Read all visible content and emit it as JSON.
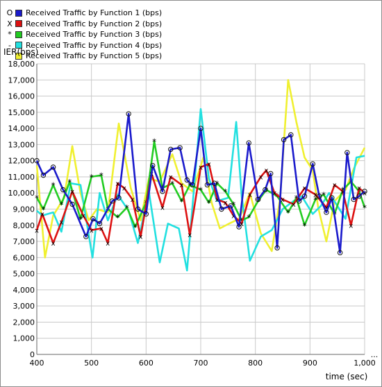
{
  "chart_data": {
    "type": "line",
    "ylabel": "IER(bps)",
    "xlabel": "time (sec)",
    "xlim": [
      400,
      1000
    ],
    "ylim": [
      0,
      18000
    ],
    "grid": true,
    "legend_position": "top-left",
    "x_ticks": [
      "400",
      "500",
      "600",
      "700",
      "800",
      "900",
      "1,000"
    ],
    "y_ticks": [
      "0",
      "1,000",
      "2,000",
      "3,000",
      "4,000",
      "5,000",
      "6,000",
      "7,000",
      "8,000",
      "9,000",
      "10,000",
      "11,000",
      "12,000",
      "13,000",
      "14,000",
      "15,000",
      "16,000",
      "17,000",
      "18,000"
    ],
    "x_overflow_marker": "...",
    "series": [
      {
        "name": "Received Traffic by Function 1 (bps)",
        "marker": "O",
        "color": "#1a1acc",
        "x": [
          400,
          412,
          430,
          448,
          465,
          490,
          503,
          515,
          538,
          550,
          568,
          585,
          600,
          612,
          630,
          645,
          662,
          675,
          685,
          700,
          712,
          725,
          738,
          755,
          770,
          788,
          805,
          818,
          828,
          840,
          852,
          865,
          880,
          890,
          905,
          917,
          930,
          940,
          955,
          968,
          980,
          990,
          1000
        ],
        "y": [
          12000,
          11100,
          11600,
          10200,
          9300,
          7300,
          8400,
          8100,
          9500,
          9700,
          14900,
          9000,
          8700,
          11700,
          10100,
          12700,
          12800,
          10800,
          10500,
          14000,
          10500,
          10600,
          9000,
          9200,
          7900,
          13100,
          9600,
          10200,
          11200,
          6600,
          13300,
          13600,
          9500,
          9800,
          11800,
          9800,
          8800,
          9700,
          6300,
          12500,
          9600,
          9800,
          10100
        ]
      },
      {
        "name": "Received Traffic by Function 2 (bps)",
        "marker": "X",
        "color": "#dd1111",
        "x": [
          400,
          410,
          430,
          445,
          465,
          485,
          500,
          518,
          530,
          548,
          560,
          575,
          590,
          610,
          630,
          645,
          665,
          680,
          700,
          715,
          730,
          745,
          760,
          775,
          790,
          810,
          820,
          835,
          850,
          870,
          890,
          910,
          930,
          945,
          960,
          975,
          990,
          1000
        ],
        "y": [
          7700,
          8700,
          6900,
          8200,
          10100,
          8600,
          7700,
          7800,
          6900,
          10600,
          10300,
          9600,
          7300,
          11200,
          9100,
          11000,
          10500,
          7400,
          11600,
          11800,
          9600,
          9400,
          8600,
          8100,
          9900,
          11000,
          11400,
          10000,
          9600,
          9300,
          10300,
          9900,
          9100,
          10500,
          10100,
          8000,
          10300,
          10000
        ]
      },
      {
        "name": "Received Traffic by Function 3 (bps)",
        "marker": "*",
        "color": "#22cc22",
        "x": [
          400,
          412,
          430,
          445,
          460,
          480,
          500,
          518,
          530,
          548,
          565,
          580,
          600,
          615,
          630,
          648,
          665,
          680,
          700,
          715,
          730,
          745,
          760,
          775,
          788,
          805,
          820,
          840,
          860,
          875,
          890,
          910,
          925,
          945,
          960,
          975,
          990,
          1000
        ],
        "y": [
          9700,
          9000,
          10500,
          9300,
          10700,
          8400,
          11000,
          11100,
          9000,
          8500,
          9100,
          7900,
          9400,
          13200,
          10300,
          10600,
          9500,
          10500,
          10200,
          9400,
          10600,
          10100,
          9300,
          8300,
          8500,
          9500,
          10200,
          9800,
          8800,
          9700,
          8000,
          9600,
          9900,
          8700,
          10200,
          10700,
          10100,
          9100
        ]
      },
      {
        "name": "Received Traffic by Function 4 (bps)",
        "marker": "-",
        "color": "#22e0e0",
        "x": [
          400,
          410,
          430,
          445,
          462,
          480,
          502,
          515,
          530,
          548,
          568,
          585,
          605,
          625,
          640,
          660,
          675,
          700,
          715,
          730,
          750,
          765,
          775,
          790,
          810,
          830,
          850,
          870,
          885,
          905,
          920,
          935,
          950,
          965,
          985,
          1000
        ],
        "y": [
          8900,
          8600,
          8800,
          7600,
          10600,
          10500,
          6000,
          10000,
          8300,
          9900,
          8900,
          6900,
          10100,
          5700,
          8100,
          7800,
          5200,
          15200,
          10900,
          9500,
          9700,
          14400,
          9800,
          5800,
          7300,
          7700,
          9000,
          9500,
          9800,
          8700,
          9200,
          10000,
          9200,
          8400,
          12200,
          12300
        ]
      },
      {
        "name": "Received Traffic by Function 5 (bps)",
        "marker": "",
        "color": "#f0f030",
        "x": [
          400,
          415,
          430,
          450,
          465,
          480,
          495,
          510,
          530,
          550,
          572,
          590,
          605,
          625,
          648,
          665,
          685,
          705,
          720,
          735,
          752,
          770,
          790,
          810,
          830,
          845,
          860,
          875,
          890,
          905,
          915,
          930,
          945,
          965,
          980,
          1000
        ],
        "y": [
          11700,
          6000,
          8600,
          9700,
          12900,
          10000,
          8300,
          9000,
          8800,
          14300,
          10300,
          8300,
          10900,
          10700,
          12400,
          10600,
          10100,
          12200,
          9400,
          7800,
          8100,
          8400,
          10000,
          7500,
          6400,
          9600,
          17000,
          14400,
          12200,
          11400,
          9100,
          7000,
          9500,
          10200,
          11500,
          12800
        ]
      }
    ]
  }
}
